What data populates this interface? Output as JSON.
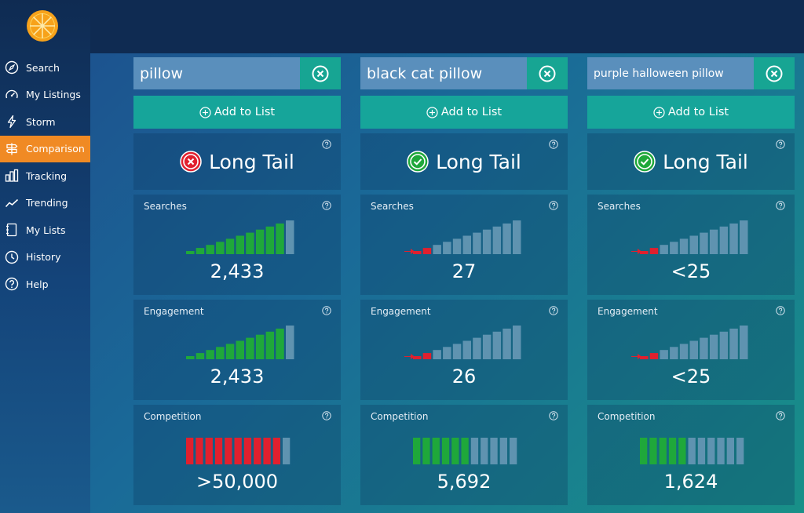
{
  "nav": {
    "items": [
      {
        "label": "Search",
        "icon": "compass-icon",
        "active": false
      },
      {
        "label": "My Listings",
        "icon": "speedometer-icon",
        "active": false
      },
      {
        "label": "Storm",
        "icon": "lightning-icon",
        "active": false
      },
      {
        "label": "Comparison",
        "icon": "signpost-icon",
        "active": true
      },
      {
        "label": "Tracking",
        "icon": "bar-chart-icon",
        "active": false
      },
      {
        "label": "Trending",
        "icon": "trend-line-icon",
        "active": false
      },
      {
        "label": "My Lists",
        "icon": "notebook-icon",
        "active": false
      },
      {
        "label": "History",
        "icon": "clock-icon",
        "active": false
      },
      {
        "label": "Help",
        "icon": "question-icon",
        "active": false
      }
    ]
  },
  "add_label": "Add to List",
  "colors": {
    "accent": "#f08a24",
    "teal": "#16a59a",
    "good": "#1fa83a",
    "bad": "#e0202e",
    "inactive_bar": "#5f93b0"
  },
  "columns": [
    {
      "query": "pillow",
      "verdict": {
        "label": "Long Tail",
        "status": "bad"
      },
      "searches": {
        "label": "Searches",
        "value": "2,433",
        "level": 10,
        "color": "green"
      },
      "engagement": {
        "label": "Engagement",
        "value": "2,433",
        "level": 10,
        "color": "green"
      },
      "competition": {
        "label": "Competition",
        "value": ">50,000",
        "level": 10,
        "color": "red"
      }
    },
    {
      "query": "black cat pillow",
      "verdict": {
        "label": "Long Tail",
        "status": "good"
      },
      "searches": {
        "label": "Searches",
        "value": "27",
        "level": 2,
        "color": "red"
      },
      "engagement": {
        "label": "Engagement",
        "value": "26",
        "level": 2,
        "color": "red"
      },
      "competition": {
        "label": "Competition",
        "value": "5,692",
        "level": 6,
        "color": "green"
      }
    },
    {
      "query": "purple halloween pillow",
      "verdict": {
        "label": "Long Tail",
        "status": "good"
      },
      "searches": {
        "label": "Searches",
        "value": "<25",
        "level": 2,
        "color": "red"
      },
      "engagement": {
        "label": "Engagement",
        "value": "<25",
        "level": 2,
        "color": "red"
      },
      "competition": {
        "label": "Competition",
        "value": "1,624",
        "level": 5,
        "color": "green"
      }
    }
  ]
}
